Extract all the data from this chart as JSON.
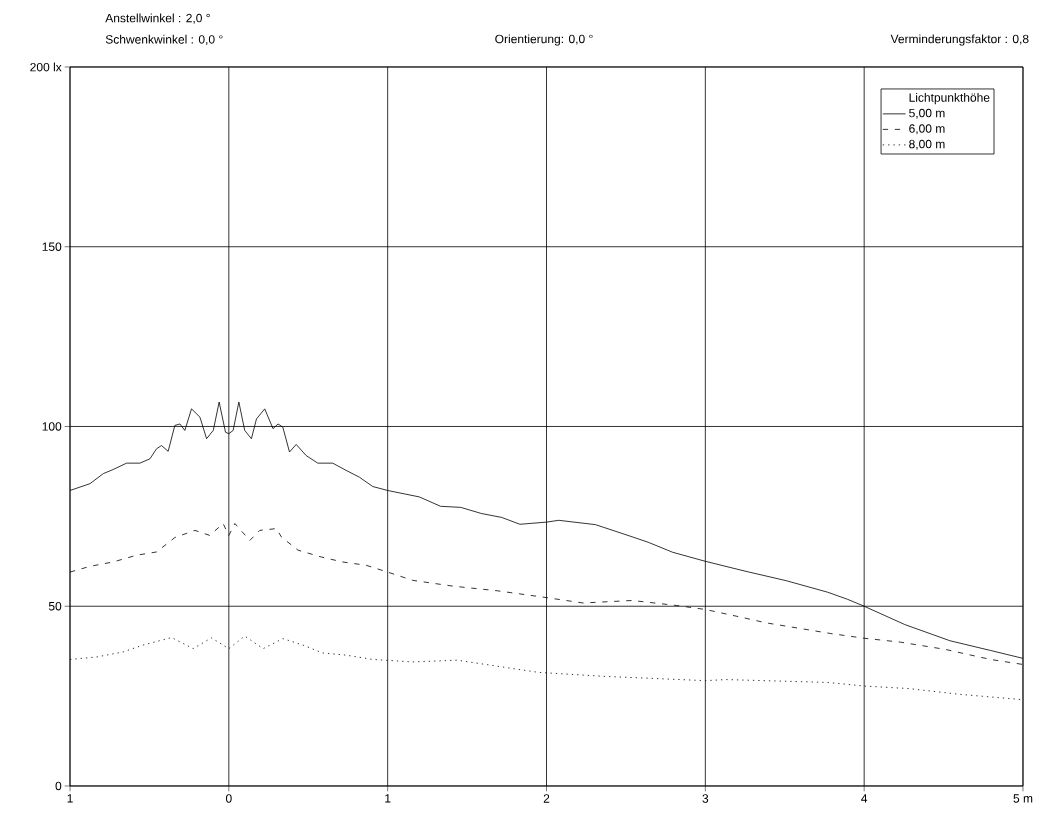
{
  "chart_data": {
    "type": "line",
    "annotations": [
      "Anstellwinkel : 2,0 °",
      "Schwenkwinkel : 0,0 °",
      "Orientierung: 0,0 °",
      "Verminderungsfaktor : 0,8"
    ],
    "legend_title": "Lichtpunkthöhe",
    "xlim": [
      -1,
      5
    ],
    "ylim": [
      0,
      200
    ],
    "xticks": [
      {
        "value": -1,
        "label": "1"
      },
      0,
      1,
      2,
      3,
      4,
      {
        "value": 5,
        "label": "5 m"
      }
    ],
    "yticks": [
      0,
      50,
      100,
      150,
      {
        "value": 200,
        "label": "200 lx"
      }
    ],
    "grid": true,
    "legend": "top right",
    "series": [
      {
        "name": "5,00 m",
        "color": "#000000",
        "line_style": "solid",
        "x": [
          -1,
          -0.874,
          -0.79,
          -0.73,
          -0.644,
          -0.56,
          -0.497,
          -0.455,
          -0.424,
          -0.382,
          -0.34,
          -0.308,
          -0.277,
          -0.235,
          -0.182,
          -0.14,
          -0.098,
          -0.061,
          -0.021,
          0,
          0.027,
          0.063,
          0.1,
          0.142,
          0.174,
          0.226,
          0.278,
          0.31,
          0.34,
          0.382,
          0.424,
          0.487,
          0.56,
          0.654,
          0.738,
          0.822,
          0.906,
          1,
          1.2,
          1.333,
          1.46,
          1.59,
          1.718,
          1.833,
          2,
          2.077,
          2.308,
          2.513,
          2.64,
          2.795,
          3,
          3.256,
          3.51,
          3.77,
          3.897,
          4,
          4.256,
          4.54,
          4.795,
          5
        ],
        "values": [
          82.2,
          84.1,
          86.9,
          88,
          89.8,
          89.8,
          91,
          93.8,
          94.7,
          93.1,
          100.3,
          100.7,
          98.9,
          104.9,
          102.6,
          96.6,
          98.9,
          106.8,
          98.4,
          98,
          98.9,
          106.8,
          98.9,
          96.6,
          102.1,
          104.9,
          99.4,
          100.7,
          99.8,
          92.9,
          95,
          91.9,
          89.8,
          89.8,
          87.8,
          85.9,
          83.3,
          82.2,
          80.4,
          77.8,
          77.5,
          75.8,
          74.7,
          72.8,
          73.4,
          73.9,
          72.7,
          69.7,
          67.8,
          65,
          62.5,
          59.7,
          57.1,
          53.9,
          51.9,
          50,
          44.9,
          40.4,
          37.7,
          35.5
        ]
      },
      {
        "name": "6,00 m",
        "color": "#000000",
        "line_style": "dashed",
        "x": [
          -1,
          -0.874,
          -0.73,
          -0.58,
          -0.455,
          -0.34,
          -0.214,
          -0.12,
          -0.036,
          0,
          0.038,
          0.132,
          0.195,
          0.3,
          0.33,
          0.435,
          0.582,
          0.717,
          0.864,
          1,
          1.157,
          1.41,
          1.69,
          2,
          2.23,
          2.54,
          2.82,
          3,
          3.23,
          3.38,
          3.79,
          4,
          4.23,
          4.51,
          4.795,
          5
        ],
        "values": [
          59.5,
          61.1,
          62.3,
          64.2,
          65.1,
          69.1,
          71.1,
          69.7,
          73,
          69.7,
          73,
          68.3,
          71.1,
          71.6,
          69.3,
          65.6,
          63.7,
          62.3,
          61.4,
          59.5,
          57.2,
          55.6,
          54.3,
          52.4,
          50.9,
          51.6,
          50.2,
          49.1,
          46.9,
          45.4,
          42.4,
          41.1,
          40,
          38,
          35.2,
          33.8
        ]
      },
      {
        "name": "8,00 m",
        "color": "#000000",
        "line_style": "dotted",
        "x": [
          -1,
          -0.83,
          -0.665,
          -0.54,
          -0.36,
          -0.225,
          -0.11,
          0,
          0.1,
          0.216,
          0.34,
          0.466,
          0.59,
          0.738,
          0.906,
          1.157,
          1.436,
          1.95,
          2.36,
          3,
          3.13,
          3.77,
          4,
          4.28,
          4.6,
          5
        ],
        "values": [
          35.2,
          35.9,
          37.3,
          39.2,
          41.3,
          38.2,
          41.2,
          38.2,
          41.7,
          38.2,
          41,
          39.2,
          37,
          36.4,
          35.2,
          34.5,
          35,
          31.6,
          30.5,
          29.3,
          29.6,
          28.8,
          27.8,
          27.1,
          25.5,
          24
        ]
      }
    ]
  }
}
